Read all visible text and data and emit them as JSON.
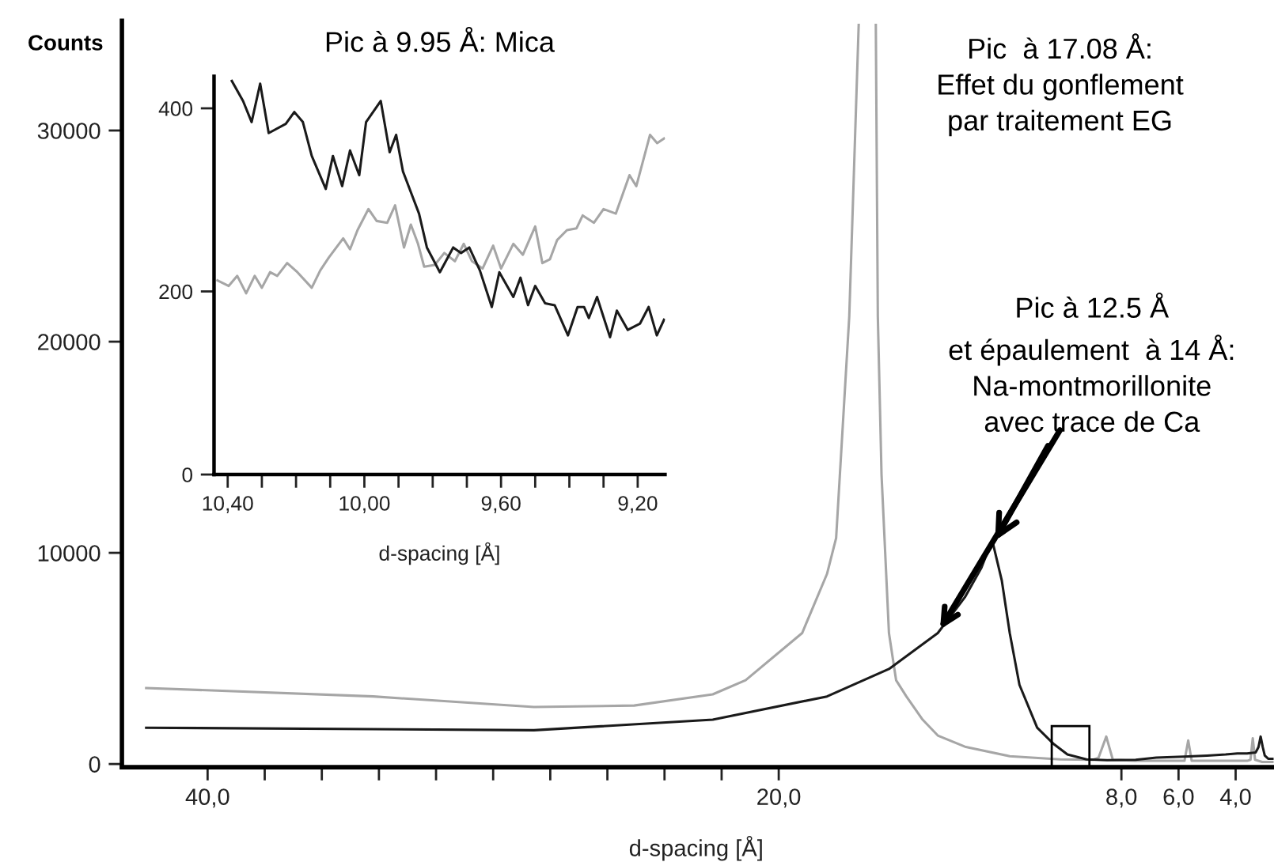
{
  "chart_data": [
    {
      "type": "line",
      "xlabel": "d-spacing [Å]",
      "ylabel": "Counts",
      "xlim": [
        43,
        2.67
      ],
      "ylim": [
        -150,
        35200
      ],
      "xticks": [
        {
          "value": 40,
          "label": "40,0"
        },
        {
          "value": 38,
          "label": null
        },
        {
          "value": 36,
          "label": null
        },
        {
          "value": 34,
          "label": null
        },
        {
          "value": 32,
          "label": null
        },
        {
          "value": 30,
          "label": null
        },
        {
          "value": 28,
          "label": null
        },
        {
          "value": 26,
          "label": null
        },
        {
          "value": 24,
          "label": null
        },
        {
          "value": 22,
          "label": null
        },
        {
          "value": 20,
          "label": "20,0"
        },
        {
          "value": 8,
          "label": "8,0"
        },
        {
          "value": 6,
          "label": "6,0"
        },
        {
          "value": 4,
          "label": "4,0"
        }
      ],
      "yticks": [
        0,
        10000,
        20000,
        30000
      ],
      "series": [
        {
          "color": "#a6a6a6",
          "x": [
            42.15,
            34.2,
            28.57,
            25.06,
            22.31,
            21.16,
            19.18,
            18.31,
            17.99,
            17.53,
            17.2,
            17.08,
            16.6,
            16.53,
            16.4,
            16.14,
            15.89,
            15.53,
            14.96,
            14.43,
            13.48,
            11.91,
            10.14,
            9.0,
            8.8,
            8.53,
            8.3,
            7.53,
            6.78,
            5.79,
            5.66,
            5.54,
            4.86,
            4.35,
            3.94,
            3.6,
            3.48,
            3.4,
            3.32,
            3.07,
            2.86,
            2.68
          ],
          "values": [
            3600,
            3200,
            2700,
            2770,
            3300,
            3970,
            6200,
            9000,
            10700,
            21200,
            35000,
            null,
            35000,
            21200,
            13700,
            6200,
            3970,
            3200,
            2100,
            1350,
            820,
            370,
            220,
            200,
            300,
            1300,
            200,
            150,
            150,
            150,
            1120,
            150,
            150,
            150,
            150,
            150,
            200,
            1220,
            200,
            100,
            100,
            100
          ]
        },
        {
          "color": "#1a1a1a",
          "x": [
            42.15,
            34.2,
            28.57,
            22.31,
            18.31,
            16.14,
            14.43,
            13.48,
            12.9,
            12.64,
            12.49,
            12.19,
            11.91,
            11.57,
            10.95,
            10.39,
            9.89,
            9.22,
            8.5,
            7.5,
            6.78,
            5.82,
            5.0,
            4.35,
            3.94,
            3.6,
            3.3,
            3.2,
            3.125,
            3.05,
            2.98,
            2.86,
            2.68
          ],
          "values": [
            1720,
            1650,
            1600,
            2100,
            3200,
            4500,
            6200,
            7900,
            9300,
            10200,
            10400,
            8700,
            6200,
            3750,
            1720,
            970,
            450,
            220,
            180,
            200,
            300,
            350,
            400,
            450,
            500,
            500,
            550,
            800,
            1300,
            800,
            400,
            250,
            250
          ]
        }
      ],
      "annotations": [
        "Pic  à 17.08 Å:\nEffet du gonflement\npar traitement EG",
        {
          "text": "Pic à 12.5 Å\net épaulement  à 14 Å:\nNa-montmorillonite\navec trace de Ca",
          "x": 12.5,
          "y": 10400
        }
      ]
    },
    {
      "type": "line",
      "title": "Pic à 9.95 Å: Mica",
      "xlabel": "d-spacing [Å]",
      "xlim": [
        10.44,
        9.12
      ],
      "ylim": [
        0,
        435
      ],
      "xticks": [
        {
          "value": 10.4,
          "label": "10,40"
        },
        {
          "value": 10.3,
          "label": null
        },
        {
          "value": 10.2,
          "label": null
        },
        {
          "value": 10.1,
          "label": null
        },
        {
          "value": 10.0,
          "label": "10,00"
        },
        {
          "value": 9.9,
          "label": null
        },
        {
          "value": 9.8,
          "label": null
        },
        {
          "value": 9.7,
          "label": null
        },
        {
          "value": 9.6,
          "label": "9,60"
        },
        {
          "value": 9.5,
          "label": null
        },
        {
          "value": 9.4,
          "label": null
        },
        {
          "value": 9.3,
          "label": null
        },
        {
          "value": 9.2,
          "label": "9,20"
        }
      ],
      "yticks": [
        0,
        200,
        400
      ],
      "series": [
        {
          "color": "#a6a6a6",
          "x": [
            10.43,
            10.397,
            10.372,
            10.346,
            10.321,
            10.3,
            10.276,
            10.255,
            10.226,
            10.196,
            10.154,
            10.129,
            10.104,
            10.062,
            10.042,
            10.02,
            9.988,
            9.964,
            9.933,
            9.91,
            9.884,
            9.864,
            9.843,
            9.825,
            9.794,
            9.766,
            9.735,
            9.709,
            9.685,
            9.654,
            9.623,
            9.6,
            9.564,
            9.536,
            9.5,
            9.479,
            9.457,
            9.436,
            9.407,
            9.379,
            9.361,
            9.328,
            9.3,
            9.264,
            9.224,
            9.204,
            9.164,
            9.143,
            9.123
          ],
          "values": [
            212,
            206,
            217,
            198,
            217,
            204,
            221,
            217,
            231,
            221,
            204,
            223,
            237,
            258,
            246,
            267,
            290,
            277,
            275,
            294,
            248,
            273,
            252,
            227,
            229,
            242,
            233,
            252,
            233,
            225,
            250,
            225,
            252,
            240,
            271,
            231,
            235,
            256,
            267,
            269,
            283,
            275,
            290,
            285,
            327,
            315,
            371,
            362,
            367
          ]
        },
        {
          "color": "#1a1a1a",
          "x": [
            10.388,
            10.355,
            10.33,
            10.305,
            10.28,
            10.23,
            10.205,
            10.18,
            10.154,
            10.113,
            10.092,
            10.065,
            10.042,
            10.015,
            9.995,
            9.952,
            9.926,
            9.907,
            9.887,
            9.84,
            9.817,
            9.779,
            9.74,
            9.717,
            9.693,
            9.662,
            9.627,
            9.605,
            9.564,
            9.543,
            9.521,
            9.5,
            9.471,
            9.443,
            9.404,
            9.376,
            9.357,
            9.343,
            9.319,
            9.281,
            9.261,
            9.229,
            9.193,
            9.168,
            9.144,
            9.123
          ],
          "values": [
            430,
            408,
            385,
            427,
            373,
            383,
            396,
            385,
            348,
            312,
            348,
            315,
            354,
            327,
            385,
            408,
            352,
            371,
            331,
            285,
            248,
            221,
            248,
            242,
            248,
            223,
            183,
            221,
            194,
            215,
            185,
            206,
            187,
            185,
            152,
            183,
            183,
            171,
            194,
            150,
            179,
            158,
            165,
            183,
            152,
            169
          ]
        }
      ]
    }
  ]
}
